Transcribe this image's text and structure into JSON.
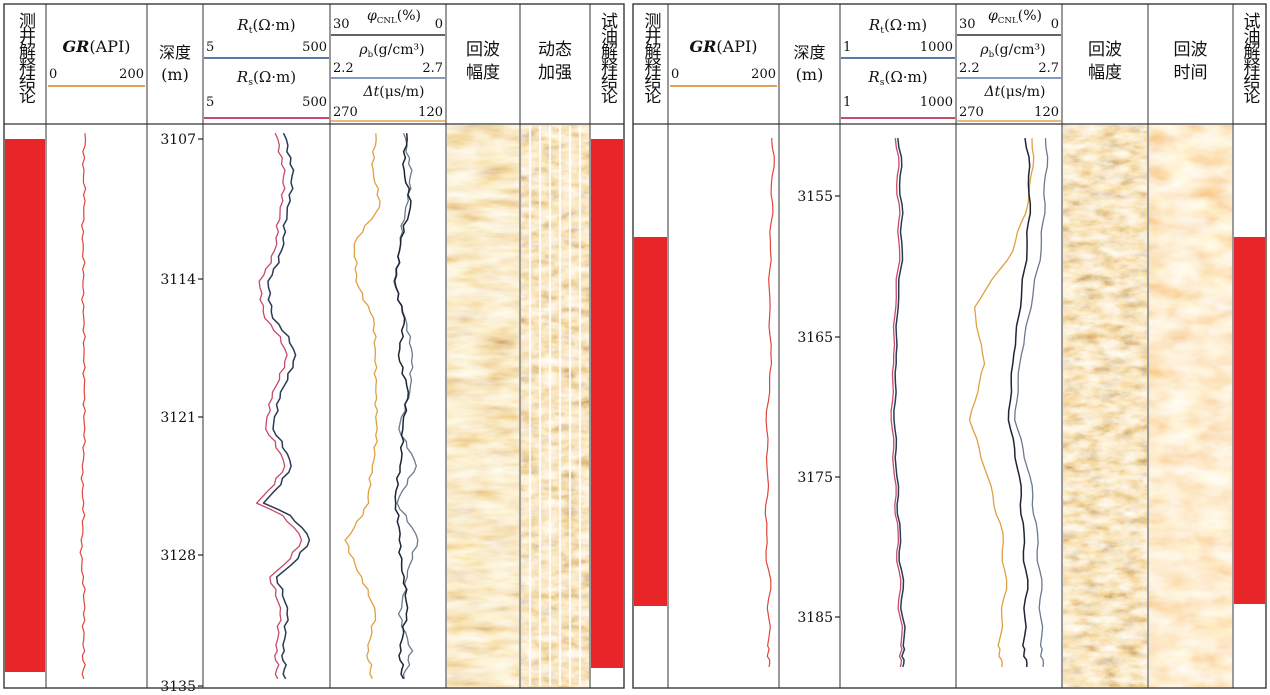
{
  "panels": [
    {
      "id": "left",
      "columns": {
        "interp_title": "测井解释结论",
        "gr": {
          "label": "GR",
          "unit": "(API)",
          "min": "0",
          "max": "200"
        },
        "depth": {
          "label1": "深度",
          "label2": "(m)"
        },
        "resist": {
          "rt": {
            "label": "R",
            "sub": "t",
            "unit": "(Ω·m)",
            "min": "5",
            "max": "500"
          },
          "rs": {
            "label": "R",
            "sub": "s",
            "unit": "(Ω·m)",
            "min": "5",
            "max": "500"
          }
        },
        "porosity": {
          "cnl": {
            "label": "φ",
            "sub": "CNL",
            "unit": "(%)",
            "min": "30",
            "max": "0"
          },
          "den": {
            "label": "ρ",
            "sub": "b",
            "unit": "(g/cm³)",
            "min": "2.2",
            "max": "2.7"
          },
          "ac": {
            "label": "Δt",
            "unit": "(μs/m)",
            "min": "270",
            "max": "120"
          }
        },
        "img1": {
          "line1": "回波",
          "line2": "幅度"
        },
        "img2": {
          "line1": "动态",
          "line2": "加强"
        },
        "test_title": "试油解释结论"
      },
      "depth_ticks": [
        "3107",
        "3114",
        "3121",
        "3128",
        "3135"
      ]
    },
    {
      "id": "right",
      "columns": {
        "interp_title": "测井解释结论",
        "gr": {
          "label": "GR",
          "unit": "(API)",
          "min": "0",
          "max": "200"
        },
        "depth": {
          "label1": "深度",
          "label2": "(m)"
        },
        "resist": {
          "rt": {
            "label": "R",
            "sub": "t",
            "unit": "(Ω·m)",
            "min": "1",
            "max": "1000"
          },
          "rs": {
            "label": "R",
            "sub": "s",
            "unit": "(Ω·m)",
            "min": "1",
            "max": "1000"
          }
        },
        "porosity": {
          "cnl": {
            "label": "φ",
            "sub": "CNL",
            "unit": "(%)",
            "min": "30",
            "max": "0"
          },
          "den": {
            "label": "ρ",
            "sub": "b",
            "unit": "(g/cm³)",
            "min": "2.2",
            "max": "2.7"
          },
          "ac": {
            "label": "Δt",
            "unit": "(μs/m)",
            "min": "270",
            "max": "120"
          }
        },
        "img1": {
          "line1": "回波",
          "line2": "幅度"
        },
        "img2": {
          "line1": "回波",
          "line2": "时间"
        },
        "test_title": "试油解释结论"
      },
      "depth_ticks": [
        "3155",
        "3165",
        "3175",
        "3185"
      ]
    }
  ],
  "colors": {
    "interp_red": "#e8262a",
    "gr": "#e0453a",
    "rt": "#2b3a55",
    "rs": "#c64b6a",
    "cnl": "#1e2533",
    "den": "#6b7a8c",
    "ac": "#e0a040",
    "scale_orange": "#e3a25a",
    "scale_red": "#c64b6a",
    "scale_blue": "#5c7aa5",
    "img_base": "#d9822b",
    "img_light": "#fbe3a6",
    "img_dark": "#3a1d08"
  },
  "chart_data": [
    {
      "type": "line",
      "title": "",
      "depth_range_m": [
        3105.5,
        3136
      ],
      "intervals": [
        {
          "track": "测井解释结论",
          "top_m": 3107,
          "bottom_m": 3135.5
        },
        {
          "track": "试油解释结论",
          "top_m": 3107,
          "bottom_m": 3133.5
        }
      ],
      "series": [
        {
          "name": "GR",
          "unit": "API",
          "range": [
            0,
            200
          ],
          "depth": [
            3106,
            3108,
            3110,
            3112,
            3114,
            3116,
            3118,
            3120,
            3122,
            3124,
            3126,
            3128,
            3130,
            3132,
            3134,
            3135.5
          ],
          "values": [
            78,
            74,
            76,
            72,
            75,
            73,
            77,
            74,
            78,
            71,
            75,
            70,
            73,
            76,
            74,
            75
          ]
        },
        {
          "name": "Rt",
          "unit": "Ω·m",
          "range": [
            5,
            500
          ],
          "depth": [
            3106,
            3108,
            3110,
            3112,
            3114,
            3116,
            3118,
            3120,
            3122,
            3124,
            3126,
            3128,
            3130,
            3132,
            3134,
            3135.5
          ],
          "values": [
            95,
            130,
            110,
            90,
            55,
            60,
            150,
            80,
            65,
            120,
            45,
            240,
            70,
            110,
            90,
            100
          ]
        },
        {
          "name": "Rs",
          "unit": "Ω·m",
          "range": [
            5,
            500
          ],
          "depth": [
            3106,
            3108,
            3110,
            3112,
            3114,
            3116,
            3118,
            3120,
            3122,
            3124,
            3126,
            3128,
            3130,
            3132,
            3134,
            3135.5
          ],
          "values": [
            70,
            95,
            85,
            70,
            40,
            45,
            110,
            60,
            50,
            95,
            35,
            180,
            55,
            85,
            70,
            75
          ]
        },
        {
          "name": "φCNL",
          "unit": "%",
          "range": [
            30,
            0
          ],
          "depth": [
            3106,
            3108,
            3110,
            3112,
            3114,
            3116,
            3118,
            3120,
            3122,
            3124,
            3126,
            3128,
            3130,
            3132,
            3134,
            3135.5
          ],
          "values": [
            10,
            11,
            9,
            12,
            13,
            11,
            12,
            10,
            11,
            12,
            13,
            12,
            11,
            10,
            12,
            11
          ]
        },
        {
          "name": "ρb",
          "unit": "g/cm³",
          "range": [
            2.2,
            2.7
          ],
          "depth": [
            3106,
            3108,
            3110,
            3112,
            3114,
            3116,
            3118,
            3120,
            3122,
            3124,
            3126,
            3128,
            3130,
            3132,
            3134,
            3135.5
          ],
          "values": [
            2.52,
            2.55,
            2.53,
            2.5,
            2.48,
            2.52,
            2.56,
            2.54,
            2.5,
            2.57,
            2.49,
            2.58,
            2.53,
            2.5,
            2.55,
            2.52
          ]
        },
        {
          "name": "Δt",
          "unit": "μs/m",
          "range": [
            270,
            120
          ],
          "depth": [
            3106,
            3108,
            3110,
            3112,
            3114,
            3116,
            3118,
            3120,
            3122,
            3124,
            3126,
            3128,
            3130,
            3132,
            3134,
            3135.5
          ],
          "values": [
            210,
            215,
            205,
            240,
            235,
            215,
            210,
            212,
            208,
            216,
            220,
            250,
            230,
            210,
            222,
            215
          ]
        }
      ]
    },
    {
      "type": "line",
      "title": "",
      "depth_range_m": [
        3149,
        3189
      ],
      "intervals": [
        {
          "track": "测井解释结论",
          "top_m": 3159,
          "bottom_m": 3184
        },
        {
          "track": "试油解释结论",
          "top_m": 3159,
          "bottom_m": 3184
        }
      ],
      "series": [
        {
          "name": "GR",
          "unit": "API",
          "range": [
            0,
            200
          ],
          "depth": [
            3150,
            3154,
            3158,
            3162,
            3166,
            3170,
            3174,
            3178,
            3182,
            3186,
            3187.5
          ],
          "values": [
            190,
            188,
            184,
            182,
            186,
            178,
            180,
            176,
            183,
            180,
            182
          ]
        },
        {
          "name": "Rt",
          "unit": "Ω·m",
          "range": [
            1,
            1000
          ],
          "depth": [
            3150,
            3154,
            3158,
            3162,
            3166,
            3170,
            3174,
            3178,
            3182,
            3186,
            3187.5
          ],
          "values": [
            35,
            38,
            40,
            30,
            28,
            26,
            30,
            34,
            40,
            44,
            42
          ]
        },
        {
          "name": "Rs",
          "unit": "Ω·m",
          "range": [
            1,
            1000
          ],
          "depth": [
            3150,
            3154,
            3158,
            3162,
            3166,
            3170,
            3174,
            3178,
            3182,
            3186,
            3187.5
          ],
          "values": [
            30,
            32,
            34,
            26,
            24,
            22,
            26,
            30,
            34,
            38,
            36
          ]
        },
        {
          "name": "φCNL",
          "unit": "%",
          "range": [
            30,
            0
          ],
          "depth": [
            3150,
            3154,
            3158,
            3162,
            3166,
            3170,
            3174,
            3178,
            3182,
            3186,
            3187.5
          ],
          "values": [
            10,
            9,
            10,
            12,
            14,
            15,
            12,
            11,
            10,
            11,
            10
          ]
        },
        {
          "name": "ρb",
          "unit": "g/cm³",
          "range": [
            2.2,
            2.7
          ],
          "depth": [
            3150,
            3154,
            3158,
            3162,
            3166,
            3170,
            3174,
            3178,
            3182,
            3186,
            3187.5
          ],
          "values": [
            2.63,
            2.62,
            2.6,
            2.55,
            2.5,
            2.48,
            2.55,
            2.58,
            2.6,
            2.6,
            2.61
          ]
        },
        {
          "name": "Δt",
          "unit": "μs/m",
          "range": [
            270,
            120
          ],
          "depth": [
            3150,
            3154,
            3158,
            3162,
            3166,
            3170,
            3174,
            3178,
            3182,
            3186,
            3187.5
          ],
          "values": [
            160,
            165,
            190,
            245,
            230,
            250,
            225,
            205,
            200,
            210,
            205
          ]
        }
      ]
    }
  ]
}
